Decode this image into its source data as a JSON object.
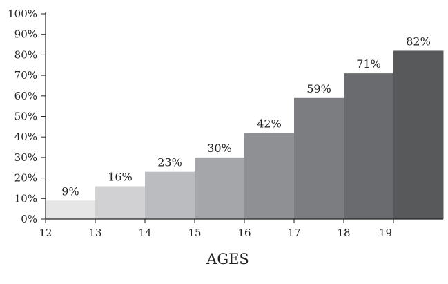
{
  "chart_data": {
    "type": "bar",
    "title": "",
    "xlabel": "AGES",
    "ylabel": "",
    "x_ticks": [
      "12",
      "13",
      "14",
      "15",
      "16",
      "17",
      "18",
      "19"
    ],
    "categories": [
      "12-13",
      "13-14",
      "14-15",
      "15-16",
      "16-17",
      "17-18",
      "18-19",
      "19"
    ],
    "values": [
      9,
      16,
      23,
      30,
      42,
      59,
      71,
      82
    ],
    "data_labels": [
      "9%",
      "16%",
      "23%",
      "30%",
      "42%",
      "59%",
      "71%",
      "82%"
    ],
    "y_ticks": [
      "0%",
      "10%",
      "20%",
      "30%",
      "40%",
      "50%",
      "60%",
      "70%",
      "80%",
      "90%",
      "100%"
    ],
    "ylim": [
      0,
      100
    ],
    "grid": false,
    "legend": "none",
    "bar_colors": [
      "#e6e6e7",
      "#d1d1d3",
      "#bbbcbf",
      "#a5a6a9",
      "#8f9093",
      "#7c7d80",
      "#6a6b6e",
      "#58595b"
    ]
  }
}
